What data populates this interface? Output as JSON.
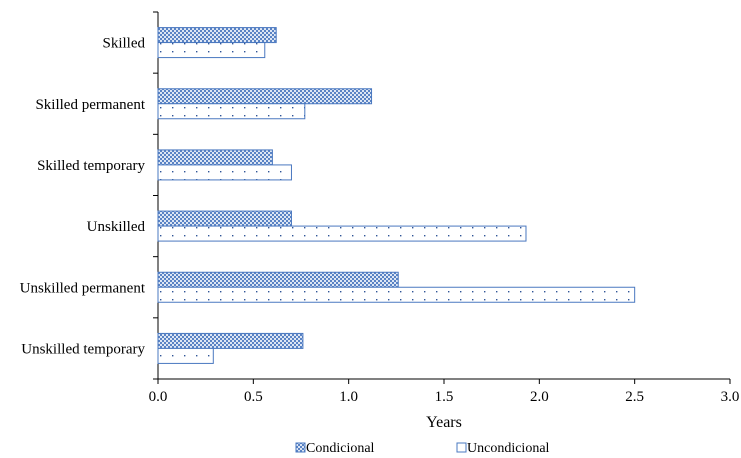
{
  "chart_data": {
    "type": "bar",
    "orientation": "horizontal",
    "categories": [
      "Skilled",
      "Skilled permanent",
      "Skilled temporary",
      "Unskilled",
      "Unskilled permanent",
      "Unskilled temporary"
    ],
    "series": [
      {
        "name": "Condicional",
        "values": [
          0.62,
          1.12,
          0.6,
          0.7,
          1.26,
          0.76
        ]
      },
      {
        "name": "Uncondicional",
        "values": [
          0.56,
          0.77,
          0.7,
          1.93,
          2.5,
          0.29
        ]
      }
    ],
    "xlabel": "Years",
    "ylabel": "",
    "xlim": [
      0,
      3.0
    ],
    "xticks": [
      "0.0",
      "0.5",
      "1.0",
      "1.5",
      "2.0",
      "2.5",
      "3.0"
    ],
    "grid": false,
    "legend_position": "bottom",
    "colors": {
      "condicional_fill": "#5a83c4",
      "condicional_dark": "#3b67ad",
      "uncondicional_fill": "#ffffff",
      "uncondicional_dots": "#2f5597",
      "bar_stroke": "#4a78c0",
      "axis": "#000000"
    }
  }
}
